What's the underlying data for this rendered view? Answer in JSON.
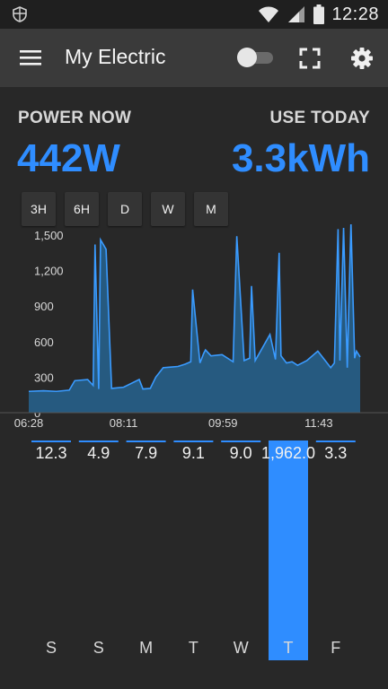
{
  "status_bar": {
    "time": "12:28",
    "left_icon": "shield-icon",
    "icons": [
      "wifi-icon",
      "signal-icon",
      "battery-icon"
    ]
  },
  "app_bar": {
    "title": "My Electric",
    "menu_icon": "menu-icon",
    "toggle_state": "off",
    "fullscreen_icon": "fullscreen-icon",
    "settings_icon": "gear-icon"
  },
  "summary": {
    "power_label": "POWER NOW",
    "power_value": "442W",
    "use_label": "USE TODAY",
    "use_value": "3.3kWh"
  },
  "range_buttons": [
    "3H",
    "6H",
    "D",
    "W",
    "M"
  ],
  "colors": {
    "accent": "#2f8dff",
    "area_fill": "#265a80",
    "line": "#3a9bff",
    "background": "#282828",
    "app_bar": "#3a3a3a"
  },
  "chart_data": [
    {
      "type": "area",
      "title": "",
      "xlabel": "",
      "ylabel": "",
      "ylim": [
        0,
        1500
      ],
      "yticks": [
        "1,500",
        "1,200",
        "900",
        "600",
        "300",
        "0"
      ],
      "xticks": [
        "06:28",
        "08:11",
        "09:59",
        "11:43"
      ],
      "x": [
        "06:28",
        "06:44",
        "06:58",
        "07:12",
        "07:18",
        "07:32",
        "07:38",
        "07:40",
        "07:44",
        "07:46",
        "07:52",
        "07:58",
        "08:04",
        "08:11",
        "08:28",
        "08:32",
        "08:40",
        "08:46",
        "08:54",
        "09:02",
        "09:10",
        "09:18",
        "09:24",
        "09:26",
        "09:34",
        "09:38",
        "09:40",
        "09:46",
        "09:58",
        "10:10",
        "10:14",
        "10:22",
        "10:28",
        "10:30",
        "10:34",
        "10:50",
        "10:56",
        "11:00",
        "11:02",
        "11:08",
        "11:14",
        "11:20",
        "11:30",
        "11:42",
        "11:50",
        "11:56",
        "12:00",
        "12:04",
        "12:06",
        "12:10",
        "12:14",
        "12:18",
        "12:22",
        "12:24",
        "12:28"
      ],
      "series": [
        {
          "values": [
            180,
            185,
            180,
            190,
            270,
            280,
            230,
            1420,
            200,
            1460,
            1380,
            205,
            210,
            215,
            280,
            200,
            205,
            300,
            380,
            385,
            390,
            410,
            430,
            1040,
            420,
            500,
            530,
            480,
            490,
            430,
            1490,
            440,
            460,
            1070,
            440,
            660,
            450,
            1350,
            480,
            420,
            430,
            400,
            440,
            520,
            440,
            380,
            420,
            1550,
            440,
            1560,
            380,
            1600,
            460,
            520,
            470
          ]
        }
      ]
    },
    {
      "type": "bar",
      "title": "",
      "categories": [
        "S",
        "S",
        "M",
        "T",
        "W",
        "T",
        "F"
      ],
      "values": [
        12.3,
        4.9,
        7.9,
        9.1,
        9.0,
        1962.0,
        3.3
      ],
      "value_labels": [
        "12.3",
        "4.9",
        "7.9",
        "9.1",
        "9.0",
        "1,962.0",
        "3.3"
      ]
    }
  ]
}
